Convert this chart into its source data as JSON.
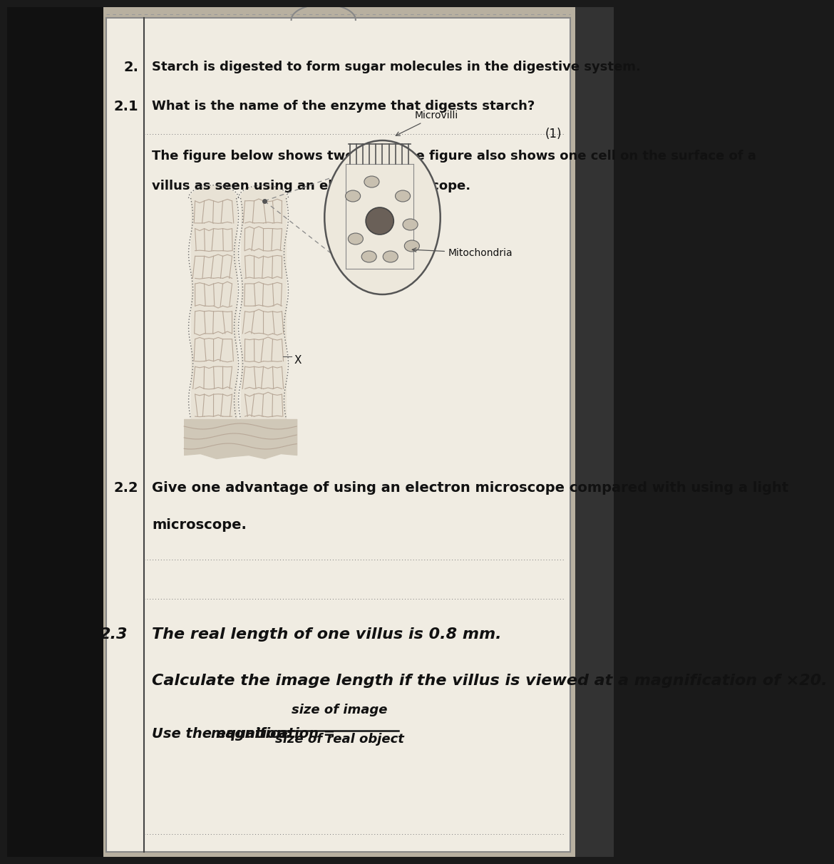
{
  "bg_left_color": "#1a1a1a",
  "bg_right_color": "#c8bfb0",
  "paper_color": "#f0ece2",
  "paper_edge": "#555555",
  "q2_number": "2.",
  "q2_text": "Starch is digested to form sugar molecules in the digestive system.",
  "q21_number": "2.1",
  "q21_text": "What is the name of the enzyme that digests starch?",
  "q21_mark": "(1)",
  "fig_text1": "The figure below shows two villi.  The figure also shows one cell on the surface of a",
  "fig_text2": "villus as seen using an electron microscope.",
  "label_microvilli": "Microvilli",
  "label_mitochondria": "Mitochondria",
  "label_x": "X",
  "q22_number": "2.2",
  "q22_text1": "Give one advantage of using an electron microscope compared with using a light",
  "q22_text2": "microscope.",
  "q23_number": "2.3",
  "q23_text1": "The real length of one villus is 0.8 mm.",
  "q23_text2": "Calculate the image length if the villus is viewed at a magnification of ×20.",
  "eq_left": "magnification =",
  "eq_numerator": "size of image",
  "eq_denominator": "size of real object",
  "use_eq": "Use the equation:"
}
